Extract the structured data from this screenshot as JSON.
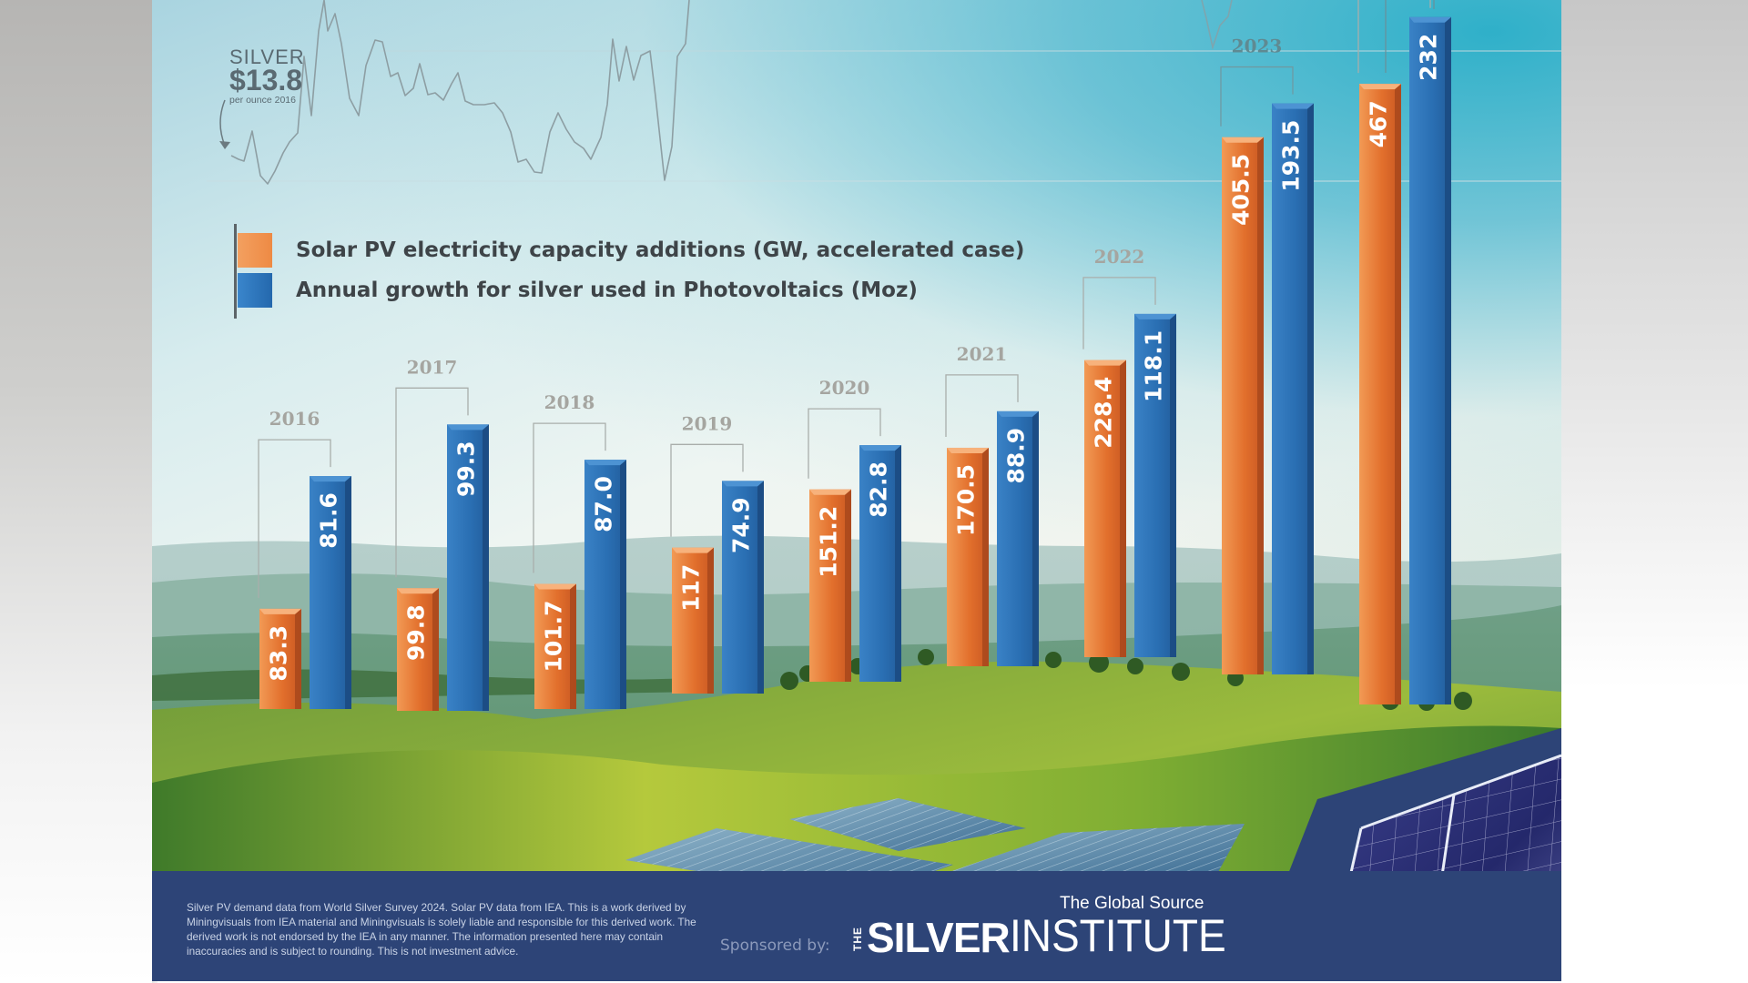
{
  "silver_callout": {
    "word": "SILVER",
    "price": "$13.8",
    "subtitle": "per ounce 2016"
  },
  "legend": {
    "items": [
      {
        "label": "Solar PV electricity capacity additions (GW, accelerated case)",
        "color": "#f08a3c"
      },
      {
        "label": "Annual growth for silver used in Photovoltaics (Moz)",
        "color": "#2a72b8"
      }
    ]
  },
  "chart_data": {
    "type": "bar",
    "title": "",
    "xlabel": "",
    "ylabel": "",
    "categories": [
      "2016",
      "2017",
      "2018",
      "2019",
      "2020",
      "2021",
      "2022",
      "2023",
      ""
    ],
    "series": [
      {
        "name": "Solar PV electricity capacity additions (GW, accelerated case)",
        "color": "#e9793a",
        "values": [
          83.3,
          99.8,
          101.7,
          117,
          151.2,
          170.5,
          228.4,
          405.5,
          467
        ],
        "labels": [
          "83.3",
          "99.8",
          "101.7",
          "117",
          "151.2",
          "170.5",
          "228.4",
          "405.5",
          "467"
        ]
      },
      {
        "name": "Annual growth for silver used in Photovoltaics (Moz)",
        "color": "#2a6fb3",
        "values": [
          81.6,
          99.3,
          87.0,
          74.9,
          82.8,
          88.9,
          118.1,
          193.5,
          232
        ],
        "labels": [
          "81.6",
          "99.3",
          "87.0",
          "74.9",
          "82.8",
          "88.9",
          "118.1",
          "193.5",
          "232"
        ]
      }
    ],
    "grid": false,
    "legend_position": "top-left",
    "value_labels": "inside bars, rotated vertical"
  },
  "footer": {
    "note": "Silver PV demand data from World Silver Survey 2024. Solar PV data from IEA. This is a work derived by Miningvisuals from IEA material and Miningvisuals is solely liable and responsible for this derived work. The derived work is not endorsed by the IEA in any manner. The information presented here may contain inaccuracies and is subject to rounding. This is not investment advice.",
    "sponsored_label": "Sponsored by:",
    "tagline": "The Global Source",
    "logo_the": "THE",
    "logo_silver": "SILVER",
    "logo_institute": "INSTITUTE"
  },
  "colors": {
    "orange": "#e9793a",
    "blue": "#2a6fb3",
    "footer_bg": "#2d4477",
    "year_label": "#a5a5a0",
    "year_label_2023": "#5f8a92"
  }
}
